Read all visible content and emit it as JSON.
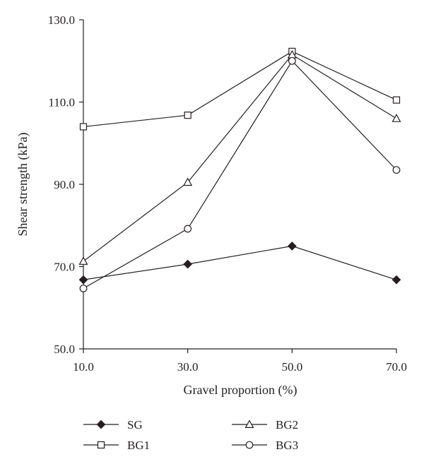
{
  "chart_data": {
    "type": "line",
    "xlabel": "Gravel proportion (%)",
    "ylabel": "Shear strength (kPa)",
    "x": [
      10,
      30,
      50,
      70
    ],
    "x_tick_labels": [
      "10.0",
      "30.0",
      "50.0",
      "70.0"
    ],
    "y_tick_values": [
      50,
      70,
      90,
      110,
      130
    ],
    "y_tick_labels": [
      "50.0",
      "70.0",
      "90.0",
      "110.0",
      "130.0"
    ],
    "xlim": [
      10,
      70
    ],
    "ylim": [
      50,
      130
    ],
    "grid": false,
    "legend_position": "bottom",
    "series": [
      {
        "name": "SG",
        "marker": "filled-diamond",
        "values": [
          66.8,
          70.6,
          75.0,
          66.8
        ]
      },
      {
        "name": "BG1",
        "marker": "hollow-square",
        "values": [
          104.0,
          106.8,
          122.3,
          110.5
        ]
      },
      {
        "name": "BG2",
        "marker": "hollow-triangle",
        "values": [
          71.3,
          90.5,
          121.5,
          106.0
        ]
      },
      {
        "name": "BG3",
        "marker": "hollow-circle",
        "values": [
          64.7,
          79.2,
          120.0,
          93.5
        ]
      }
    ],
    "colors": {
      "line": "#231f20",
      "marker_fill": "#ffffff"
    }
  }
}
